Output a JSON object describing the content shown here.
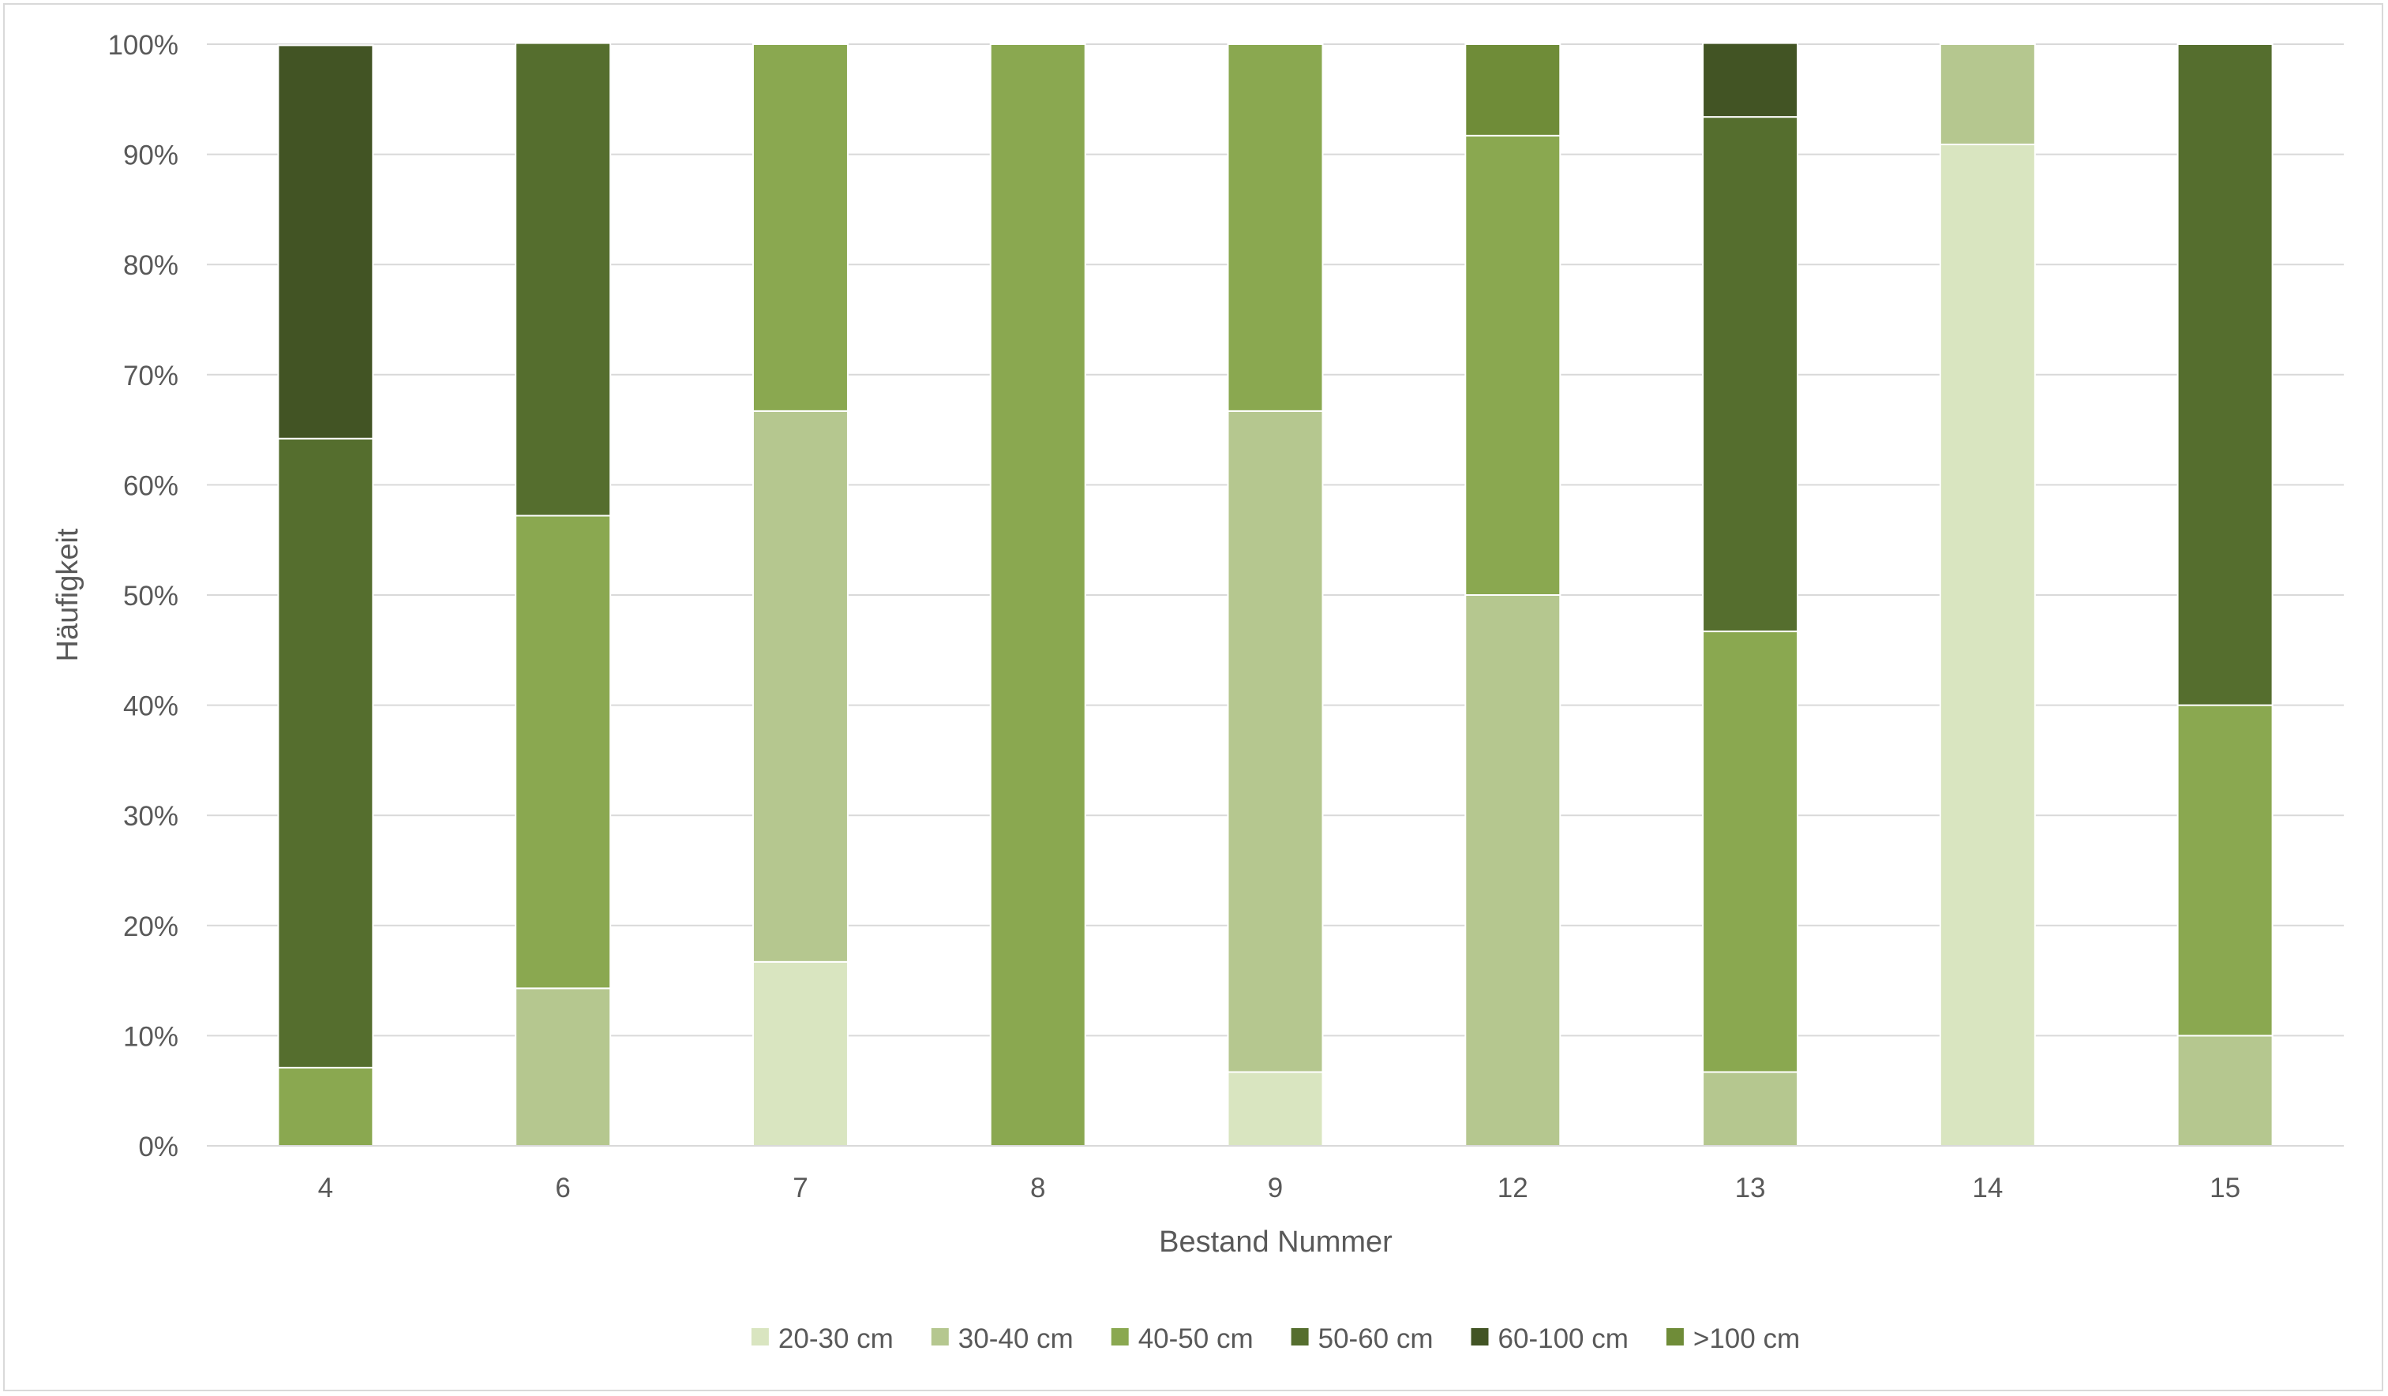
{
  "chart_data": {
    "type": "bar",
    "stacked": true,
    "percent": true,
    "title": "",
    "xlabel": "Bestand Nummer",
    "ylabel": "Häufigkeit",
    "categories": [
      "4",
      "6",
      "7",
      "8",
      "9",
      "12",
      "13",
      "14",
      "15"
    ],
    "ylim": [
      0,
      100
    ],
    "yticks": [
      "0%",
      "10%",
      "20%",
      "30%",
      "40%",
      "50%",
      "60%",
      "70%",
      "80%",
      "90%",
      "100%"
    ],
    "grid": true,
    "legend": "bottom",
    "series": [
      {
        "name": "20-30 cm",
        "color": "#d9e5c0",
        "values": [
          0,
          0,
          16.7,
          0,
          6.7,
          0,
          0,
          90.9,
          0
        ]
      },
      {
        "name": "30-40 cm",
        "color": "#b5c78f",
        "values": [
          0,
          14.3,
          50,
          0,
          60,
          50,
          6.7,
          9.1,
          10
        ]
      },
      {
        "name": "40-50 cm",
        "color": "#8aa850",
        "values": [
          7.1,
          42.9,
          33.3,
          100,
          33.3,
          41.7,
          40,
          0,
          30
        ]
      },
      {
        "name": "50-60 cm",
        "color": "#556e2e",
        "values": [
          57.1,
          42.9,
          0,
          0,
          0,
          0,
          46.7,
          0,
          60
        ]
      },
      {
        "name": "60-100 cm",
        "color": "#425424",
        "values": [
          35.7,
          0,
          0,
          0,
          0,
          0,
          6.7,
          0,
          0
        ]
      },
      {
        "name": ">100 cm",
        "color": "#6f8c38",
        "values": [
          0,
          0,
          0,
          0,
          0,
          8.3,
          0,
          0,
          0
        ]
      }
    ]
  }
}
